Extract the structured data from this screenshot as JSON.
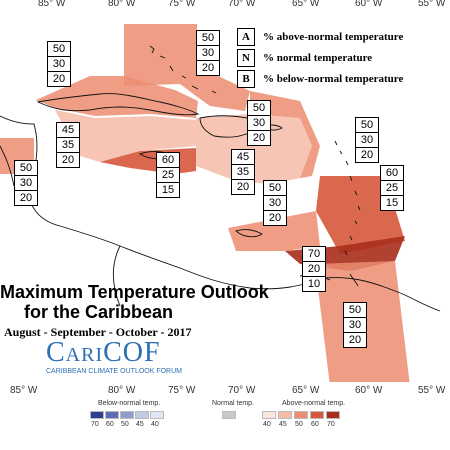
{
  "map": {
    "longitudes_top": [
      "85° W",
      "80° W",
      "75° W",
      "70° W",
      "65° W",
      "60° W",
      "55° W"
    ],
    "longitudes_bottom": [
      "85° W",
      "80° W",
      "75° W",
      "70° W",
      "65° W",
      "60° W",
      "55° W"
    ]
  },
  "legend_key": {
    "a": {
      "letter": "A",
      "text": "% above-normal temperature"
    },
    "n": {
      "letter": "N",
      "text": "% normal temperature"
    },
    "b": {
      "letter": "B",
      "text": "% below-normal temperature"
    }
  },
  "title": {
    "line1": "Maximum Temperature Outlook",
    "line2": "for the Caribbean",
    "season": "August - September - October - 2017"
  },
  "logo": {
    "name": "CariCOF",
    "subtitle": "CARIBBEAN CLIMATE OUTLOOK FORUM"
  },
  "scale": {
    "below_label": "Below-normal temp.",
    "normal_label": "Normal temp.",
    "above_label": "Above-normal temp.",
    "below_colors": [
      "#2f3f8f",
      "#5c6db6",
      "#8e9cd0",
      "#c1c9e6",
      "#e2e6f3"
    ],
    "below_values": [
      "70",
      "60",
      "50",
      "45",
      "40"
    ],
    "normal_color": "#c8c8c8",
    "above_colors": [
      "#fbe6df",
      "#f6bba6",
      "#ec8d70",
      "#d5583c",
      "#a82d1c"
    ],
    "above_values": [
      "40",
      "45",
      "50",
      "60",
      "70"
    ]
  },
  "regions": [
    {
      "id": "bahamas",
      "a": "50",
      "n": "30",
      "b": "20",
      "color": "#ec8d70"
    },
    {
      "id": "cuba",
      "a": "50",
      "n": "30",
      "b": "20",
      "color": "#ec8d70"
    },
    {
      "id": "belize",
      "a": "50",
      "n": "30",
      "b": "20",
      "color": "#ec8d70"
    },
    {
      "id": "cayman",
      "a": "45",
      "n": "35",
      "b": "20",
      "color": "#f6bba6"
    },
    {
      "id": "jamaica",
      "a": "60",
      "n": "25",
      "b": "15",
      "color": "#d5583c"
    },
    {
      "id": "hispaniola",
      "a": "45",
      "n": "35",
      "b": "20",
      "color": "#f6bba6"
    },
    {
      "id": "turks",
      "a": "50",
      "n": "30",
      "b": "20",
      "color": "#ec8d70"
    },
    {
      "id": "north-leewards",
      "a": "50",
      "n": "30",
      "b": "20",
      "color": "#ec8d70"
    },
    {
      "id": "leewards",
      "a": "60",
      "n": "25",
      "b": "15",
      "color": "#d5583c"
    },
    {
      "id": "puerto-rico",
      "a": "50",
      "n": "30",
      "b": "20",
      "color": "#ec8d70"
    },
    {
      "id": "south-windwards",
      "a": "70",
      "n": "20",
      "b": "10",
      "color": "#a82d1c"
    },
    {
      "id": "guianas",
      "a": "50",
      "n": "30",
      "b": "20",
      "color": "#ec8d70"
    }
  ]
}
